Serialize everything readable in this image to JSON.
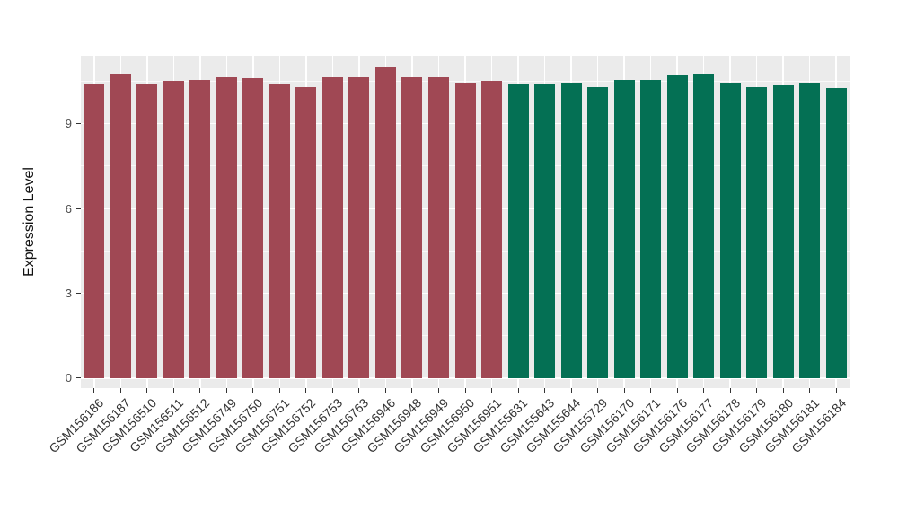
{
  "chart_data": {
    "type": "bar",
    "title": "",
    "xlabel": "",
    "ylabel": "Expression Level",
    "legend_position": "none",
    "grid": true,
    "panel_bg": "#EBEBEB",
    "grid_color": "#FFFFFF",
    "ylim": [
      -0.35,
      11.4
    ],
    "yticks": [
      0,
      3,
      6,
      9
    ],
    "yticks_minor": [
      1.5,
      4.5,
      7.5,
      10.5
    ],
    "group_colors": {
      "left_group": "#A04854",
      "right_group": "#047054"
    },
    "categories": [
      "GSM156186",
      "GSM156187",
      "GSM156510",
      "GSM156511",
      "GSM156512",
      "GSM156749",
      "GSM156750",
      "GSM156751",
      "GSM156752",
      "GSM156753",
      "GSM156763",
      "GSM156946",
      "GSM156948",
      "GSM156949",
      "GSM156950",
      "GSM156951",
      "GSM155631",
      "GSM155643",
      "GSM155644",
      "GSM155729",
      "GSM156170",
      "GSM156171",
      "GSM156176",
      "GSM156177",
      "GSM156178",
      "GSM156179",
      "GSM156180",
      "GSM156181",
      "GSM156184"
    ],
    "values": [
      10.4,
      10.75,
      10.4,
      10.5,
      10.55,
      10.65,
      10.6,
      10.4,
      10.3,
      10.65,
      10.65,
      11.0,
      10.65,
      10.65,
      10.45,
      10.5,
      10.4,
      10.4,
      10.45,
      10.3,
      10.55,
      10.55,
      10.7,
      10.75,
      10.45,
      10.3,
      10.35,
      10.45,
      10.25
    ],
    "bar_colors": [
      "#A04854",
      "#A04854",
      "#A04854",
      "#A04854",
      "#A04854",
      "#A04854",
      "#A04854",
      "#A04854",
      "#A04854",
      "#A04854",
      "#A04854",
      "#A04854",
      "#A04854",
      "#A04854",
      "#A04854",
      "#A04854",
      "#047054",
      "#047054",
      "#047054",
      "#047054",
      "#047054",
      "#047054",
      "#047054",
      "#047054",
      "#047054",
      "#047054",
      "#047054",
      "#047054",
      "#047054"
    ]
  }
}
